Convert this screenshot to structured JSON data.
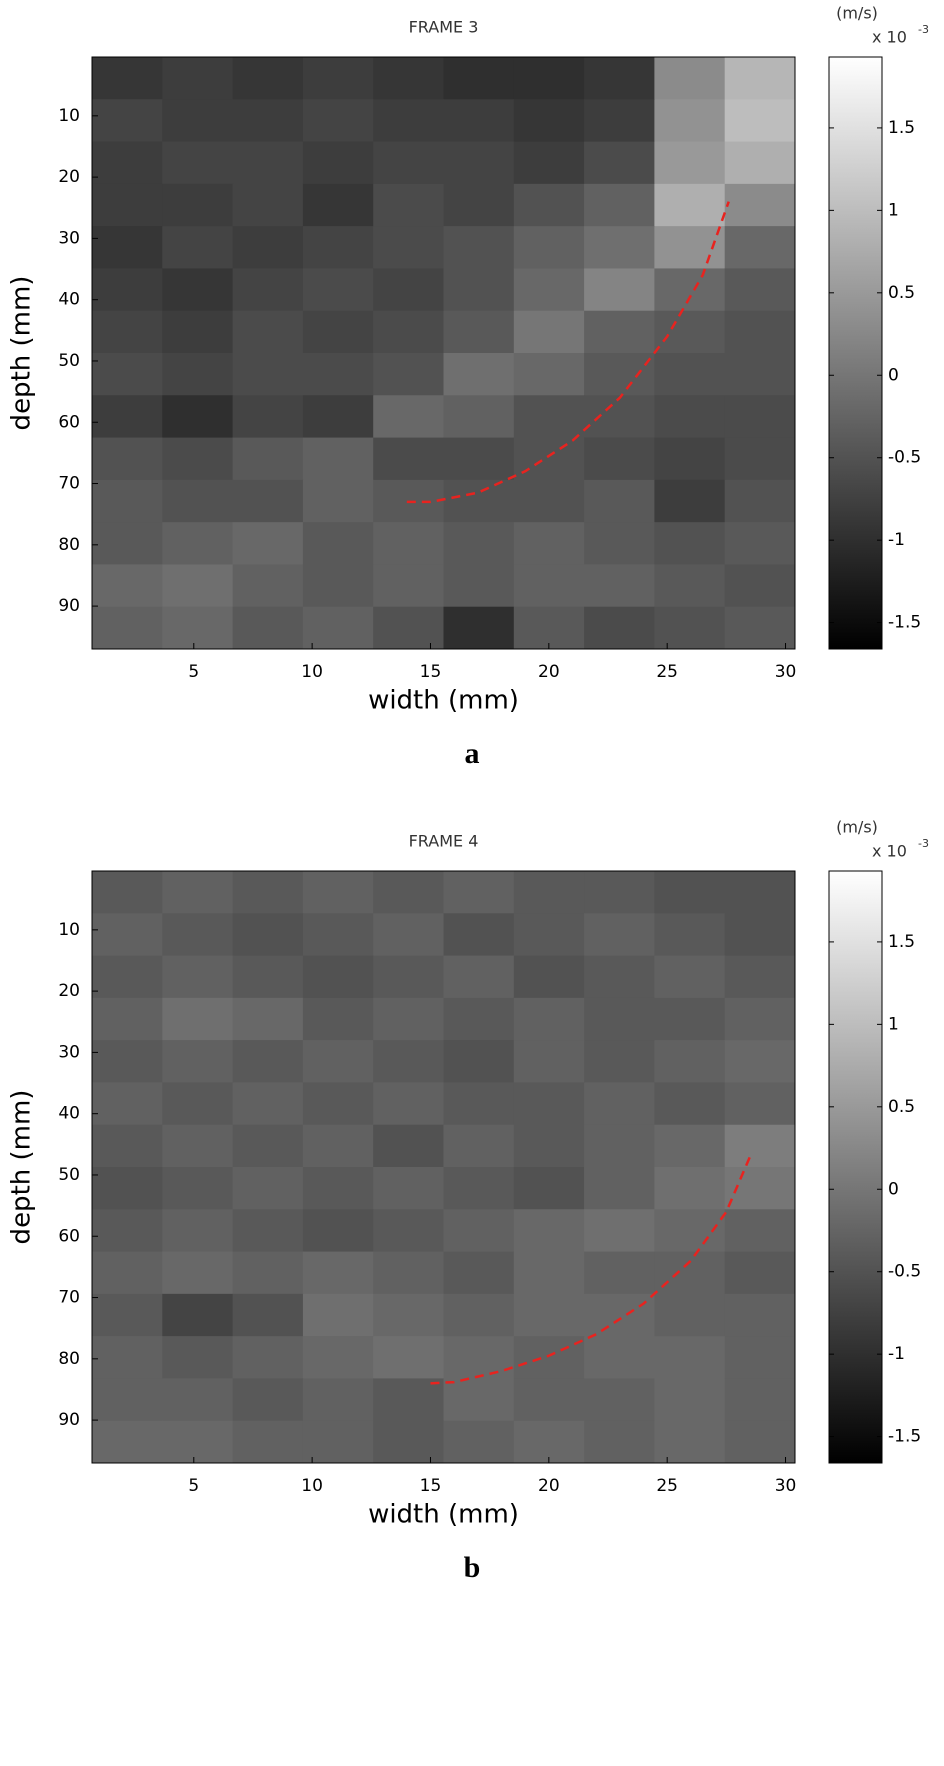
{
  "chart_data": [
    {
      "type": "heatmap",
      "title": "FRAME 3",
      "panel_label": "a",
      "xlabel": "width (mm)",
      "ylabel": "depth (mm)",
      "xlim": [
        0.7,
        30.4
      ],
      "ylim": [
        97,
        0.4
      ],
      "xticks": [
        5,
        10,
        15,
        20,
        25,
        30
      ],
      "yticks": [
        10,
        20,
        30,
        40,
        50,
        60,
        70,
        80,
        90
      ],
      "colormap": "gray",
      "clim": [
        -1.66,
        1.93
      ],
      "cticks": [
        -1.5,
        -1,
        -0.5,
        0,
        0.5,
        1,
        1.5
      ],
      "colorbar_unit": "(m/s)",
      "colorbar_scale": "x 10",
      "colorbar_exponent": "-3",
      "z": [
        [
          -0.9,
          -0.8,
          -0.9,
          -0.8,
          -0.9,
          -1.0,
          -1.0,
          -0.9,
          0.3,
          0.9
        ],
        [
          -0.7,
          -0.8,
          -0.8,
          -0.7,
          -0.8,
          -0.8,
          -0.9,
          -0.8,
          0.4,
          1.0
        ],
        [
          -0.8,
          -0.7,
          -0.7,
          -0.8,
          -0.7,
          -0.7,
          -0.8,
          -0.6,
          0.5,
          0.8
        ],
        [
          -0.8,
          -0.8,
          -0.7,
          -0.9,
          -0.6,
          -0.7,
          -0.5,
          -0.3,
          0.8,
          0.3
        ],
        [
          -0.9,
          -0.7,
          -0.8,
          -0.7,
          -0.6,
          -0.5,
          -0.3,
          -0.1,
          0.4,
          -0.2
        ],
        [
          -0.8,
          -0.9,
          -0.7,
          -0.6,
          -0.7,
          -0.5,
          -0.2,
          0.2,
          -0.2,
          -0.4
        ],
        [
          -0.7,
          -0.8,
          -0.6,
          -0.7,
          -0.6,
          -0.4,
          0.0,
          -0.3,
          -0.4,
          -0.5
        ],
        [
          -0.6,
          -0.7,
          -0.6,
          -0.6,
          -0.5,
          -0.1,
          -0.2,
          -0.4,
          -0.5,
          -0.5
        ],
        [
          -0.8,
          -1.0,
          -0.7,
          -0.8,
          -0.2,
          -0.3,
          -0.5,
          -0.5,
          -0.6,
          -0.6
        ],
        [
          -0.5,
          -0.6,
          -0.4,
          -0.3,
          -0.6,
          -0.6,
          -0.5,
          -0.6,
          -0.7,
          -0.6
        ],
        [
          -0.4,
          -0.5,
          -0.5,
          -0.3,
          -0.4,
          -0.5,
          -0.5,
          -0.4,
          -0.8,
          -0.5
        ],
        [
          -0.4,
          -0.3,
          -0.2,
          -0.4,
          -0.3,
          -0.4,
          -0.3,
          -0.4,
          -0.5,
          -0.4
        ],
        [
          -0.2,
          -0.1,
          -0.3,
          -0.4,
          -0.3,
          -0.4,
          -0.3,
          -0.3,
          -0.4,
          -0.5
        ],
        [
          -0.3,
          -0.2,
          -0.4,
          -0.3,
          -0.5,
          -1.0,
          -0.4,
          -0.6,
          -0.5,
          -0.4
        ]
      ],
      "curve": {
        "color": "#e8231f",
        "x": [
          14,
          15,
          17,
          19,
          21,
          23,
          25,
          26.5,
          27.6
        ],
        "y": [
          73,
          73,
          71.5,
          68,
          63,
          56,
          46,
          36,
          24
        ]
      }
    },
    {
      "type": "heatmap",
      "title": "FRAME 4",
      "panel_label": "b",
      "xlabel": "width (mm)",
      "ylabel": "depth (mm)",
      "xlim": [
        0.7,
        30.4
      ],
      "ylim": [
        97,
        0.4
      ],
      "xticks": [
        5,
        10,
        15,
        20,
        25,
        30
      ],
      "yticks": [
        10,
        20,
        30,
        40,
        50,
        60,
        70,
        80,
        90
      ],
      "colormap": "gray",
      "clim": [
        -1.66,
        1.93
      ],
      "cticks": [
        -1.5,
        -1,
        -0.5,
        0,
        0.5,
        1,
        1.5
      ],
      "colorbar_unit": "(m/s)",
      "colorbar_scale": "x 10",
      "colorbar_exponent": "-3",
      "z": [
        [
          -0.4,
          -0.3,
          -0.4,
          -0.3,
          -0.4,
          -0.3,
          -0.4,
          -0.4,
          -0.5,
          -0.5
        ],
        [
          -0.3,
          -0.4,
          -0.5,
          -0.4,
          -0.3,
          -0.5,
          -0.4,
          -0.3,
          -0.4,
          -0.5
        ],
        [
          -0.4,
          -0.3,
          -0.4,
          -0.5,
          -0.4,
          -0.3,
          -0.5,
          -0.4,
          -0.3,
          -0.4
        ],
        [
          -0.3,
          -0.1,
          -0.2,
          -0.4,
          -0.3,
          -0.4,
          -0.3,
          -0.4,
          -0.4,
          -0.3
        ],
        [
          -0.4,
          -0.3,
          -0.4,
          -0.3,
          -0.4,
          -0.5,
          -0.3,
          -0.4,
          -0.3,
          -0.2
        ],
        [
          -0.3,
          -0.4,
          -0.3,
          -0.4,
          -0.3,
          -0.4,
          -0.4,
          -0.3,
          -0.4,
          -0.3
        ],
        [
          -0.4,
          -0.3,
          -0.4,
          -0.3,
          -0.5,
          -0.3,
          -0.4,
          -0.3,
          -0.2,
          0.1
        ],
        [
          -0.5,
          -0.4,
          -0.3,
          -0.4,
          -0.3,
          -0.4,
          -0.5,
          -0.3,
          -0.1,
          0.0
        ],
        [
          -0.4,
          -0.3,
          -0.4,
          -0.5,
          -0.4,
          -0.3,
          -0.2,
          -0.1,
          -0.2,
          -0.3
        ],
        [
          -0.3,
          -0.2,
          -0.3,
          -0.2,
          -0.3,
          -0.4,
          -0.2,
          -0.3,
          -0.3,
          -0.4
        ],
        [
          -0.4,
          -0.7,
          -0.5,
          -0.1,
          -0.2,
          -0.3,
          -0.2,
          -0.2,
          -0.3,
          -0.3
        ],
        [
          -0.3,
          -0.4,
          -0.3,
          -0.2,
          -0.1,
          -0.2,
          -0.3,
          -0.2,
          -0.2,
          -0.3
        ],
        [
          -0.3,
          -0.3,
          -0.4,
          -0.3,
          -0.4,
          -0.2,
          -0.3,
          -0.3,
          -0.2,
          -0.3
        ],
        [
          -0.2,
          -0.2,
          -0.3,
          -0.3,
          -0.4,
          -0.3,
          -0.2,
          -0.3,
          -0.2,
          -0.3
        ]
      ],
      "curve": {
        "color": "#e8231f",
        "x": [
          15,
          16,
          18,
          20,
          22,
          24,
          26,
          27.5,
          28.5
        ],
        "y": [
          84,
          83.8,
          82,
          79.5,
          76,
          71,
          64,
          56,
          47
        ]
      }
    }
  ]
}
